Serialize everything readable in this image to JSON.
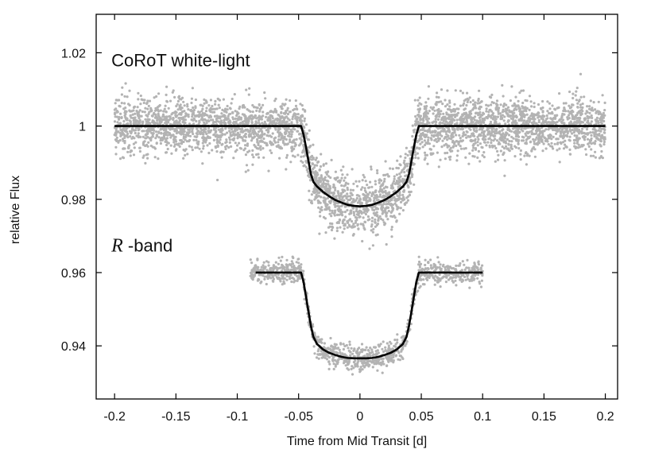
{
  "chart_data": {
    "type": "scatter",
    "title": "",
    "xlabel": "Time from Mid Transit [d]",
    "ylabel": "relative Flux",
    "xlim": [
      -0.215,
      0.21
    ],
    "ylim": [
      0.9255,
      1.0305
    ],
    "x_ticks": [
      -0.2,
      -0.15,
      -0.1,
      -0.05,
      0,
      0.05,
      0.1,
      0.15,
      0.2
    ],
    "x_tick_labels": [
      "-0.2",
      "-0.15",
      "-0.1",
      "-0.05",
      "0",
      "0.05",
      "0.1",
      "0.15",
      "0.2"
    ],
    "y_ticks": [
      0.94,
      0.96,
      0.98,
      1,
      1.02
    ],
    "y_tick_labels": [
      "0.94",
      "0.96",
      "0.98",
      "1",
      "1.02"
    ],
    "grid": false,
    "legend": "none",
    "annotations": [
      {
        "text": "CoRoT white-light",
        "x": -0.2,
        "y": 1.018
      },
      {
        "text_italic": "R",
        "text": " -band",
        "x": -0.2,
        "y": 0.9675
      }
    ],
    "series": [
      {
        "role": "CoRoT white-light data",
        "kind": "scatter",
        "color": "#b3b3b3",
        "x_range": [
          -0.2,
          0.2
        ],
        "baseline": 1.0,
        "transit_depth": 0.022,
        "scatter_sigma": 0.0038,
        "n_points": 4200
      },
      {
        "role": "CoRoT white-light model",
        "kind": "line",
        "color": "#000000",
        "points": [
          [
            -0.2,
            1.0
          ],
          [
            -0.048,
            1.0
          ],
          [
            -0.046,
            0.9977
          ],
          [
            -0.044,
            0.9943
          ],
          [
            -0.042,
            0.9905
          ],
          [
            -0.04,
            0.9869
          ],
          [
            -0.038,
            0.9848
          ],
          [
            -0.035,
            0.9835
          ],
          [
            -0.03,
            0.982
          ],
          [
            -0.025,
            0.9808
          ],
          [
            -0.02,
            0.9798
          ],
          [
            -0.015,
            0.9791
          ],
          [
            -0.01,
            0.9785
          ],
          [
            -0.005,
            0.9782
          ],
          [
            0,
            0.9781
          ],
          [
            0.005,
            0.9782
          ],
          [
            0.01,
            0.9785
          ],
          [
            0.015,
            0.9791
          ],
          [
            0.02,
            0.9798
          ],
          [
            0.025,
            0.9808
          ],
          [
            0.03,
            0.982
          ],
          [
            0.035,
            0.9835
          ],
          [
            0.038,
            0.9848
          ],
          [
            0.04,
            0.9869
          ],
          [
            0.042,
            0.9905
          ],
          [
            0.044,
            0.9943
          ],
          [
            0.046,
            0.9977
          ],
          [
            0.048,
            1.0
          ],
          [
            0.2,
            1.0
          ]
        ]
      },
      {
        "role": "R-band data",
        "kind": "scatter",
        "color": "#b3b3b3",
        "x_range": [
          -0.09,
          0.1
        ],
        "baseline": 0.96,
        "transit_depth": 0.0235,
        "scatter_sigma": 0.0016,
        "n_points": 1100
      },
      {
        "role": "R-band model",
        "kind": "line",
        "color": "#000000",
        "points": [
          [
            -0.085,
            0.96
          ],
          [
            -0.048,
            0.96
          ],
          [
            -0.046,
            0.9575
          ],
          [
            -0.044,
            0.9535
          ],
          [
            -0.042,
            0.9494
          ],
          [
            -0.04,
            0.9455
          ],
          [
            -0.038,
            0.9425
          ],
          [
            -0.035,
            0.9405
          ],
          [
            -0.03,
            0.939
          ],
          [
            -0.025,
            0.9381
          ],
          [
            -0.02,
            0.9375
          ],
          [
            -0.015,
            0.937
          ],
          [
            -0.01,
            0.9367
          ],
          [
            -0.005,
            0.9366
          ],
          [
            0,
            0.9366
          ],
          [
            0.005,
            0.9366
          ],
          [
            0.01,
            0.9367
          ],
          [
            0.015,
            0.937
          ],
          [
            0.02,
            0.9375
          ],
          [
            0.025,
            0.9381
          ],
          [
            0.03,
            0.939
          ],
          [
            0.035,
            0.9405
          ],
          [
            0.038,
            0.9425
          ],
          [
            0.04,
            0.9455
          ],
          [
            0.042,
            0.9494
          ],
          [
            0.044,
            0.9535
          ],
          [
            0.046,
            0.9575
          ],
          [
            0.048,
            0.96
          ],
          [
            0.1,
            0.96
          ]
        ]
      }
    ]
  }
}
